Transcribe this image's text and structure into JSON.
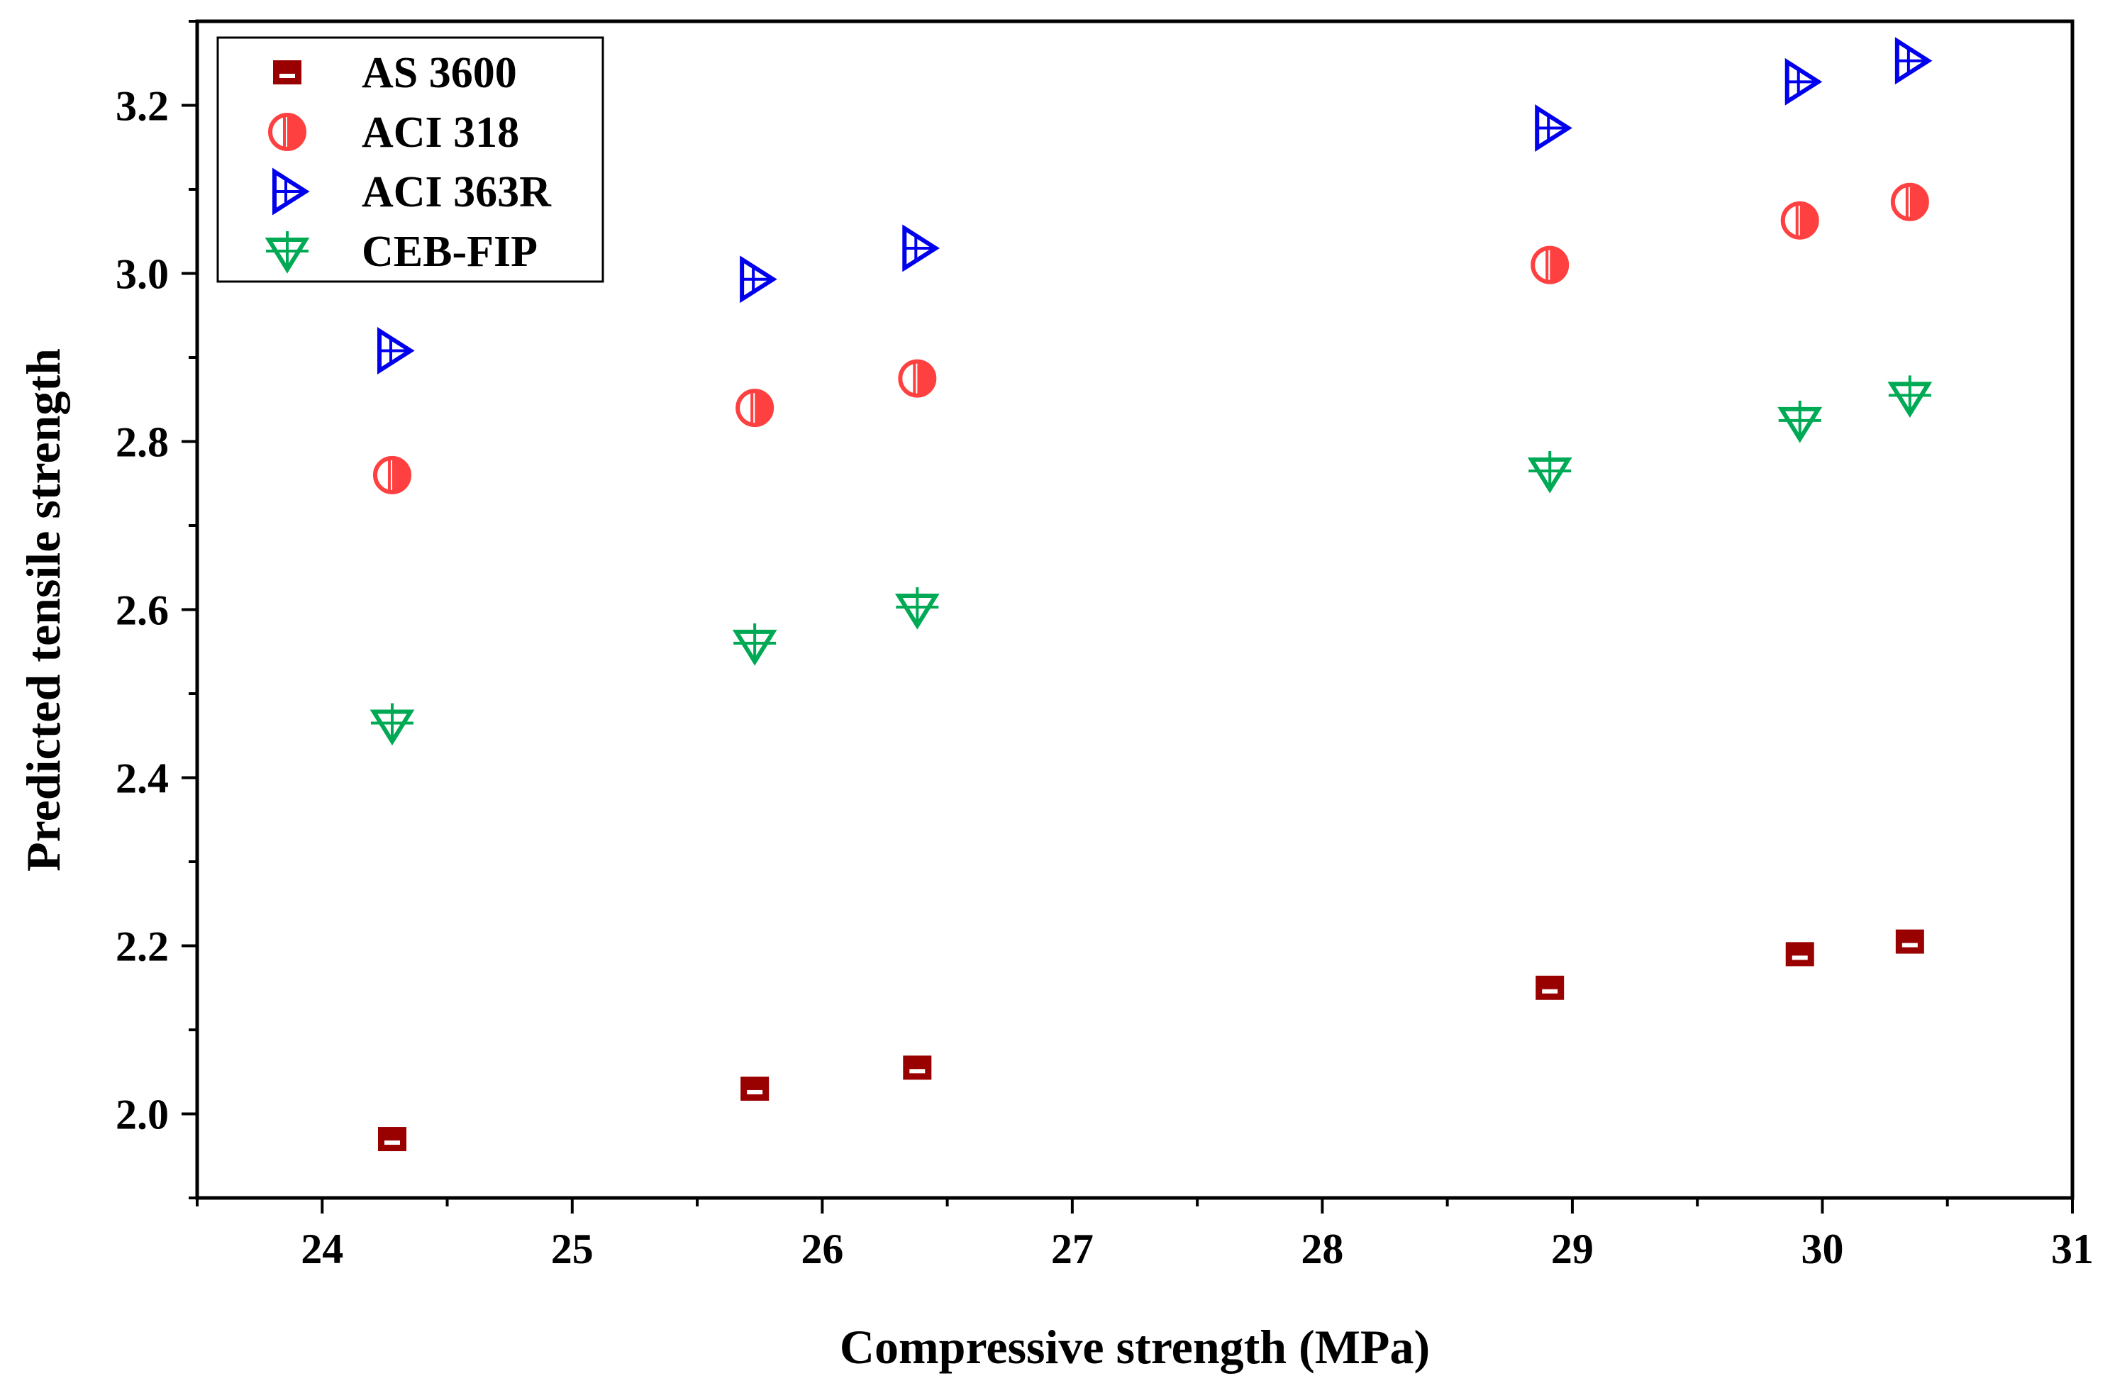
{
  "chart_data": {
    "type": "scatter",
    "title": "",
    "xlabel": "Compressive strength (MPa)",
    "ylabel": "Predicted tensile strength",
    "xlim": [
      23.5,
      31
    ],
    "ylim": [
      1.9,
      3.3
    ],
    "xticks": [
      24,
      25,
      26,
      27,
      28,
      29,
      30,
      31
    ],
    "yticks": [
      2.0,
      2.2,
      2.4,
      2.6,
      2.8,
      3.0,
      3.2
    ],
    "ytick_labels": [
      "2.0",
      "2.2",
      "2.4",
      "2.6",
      "2.8",
      "3.0",
      "3.2"
    ],
    "x": [
      24.28,
      25.73,
      26.38,
      28.91,
      29.91,
      30.35
    ],
    "series": [
      {
        "name": "AS 3600",
        "marker": "square-half",
        "color": "#990000",
        "values": [
          1.97,
          2.03,
          2.055,
          2.15,
          2.19,
          2.205
        ]
      },
      {
        "name": "ACI 318",
        "marker": "circle-half",
        "color": "#ff4040",
        "values": [
          2.76,
          2.84,
          2.875,
          3.01,
          3.063,
          3.085
        ]
      },
      {
        "name": "ACI 363R",
        "marker": "triangle-right",
        "color": "#0000ee",
        "values": [
          2.908,
          2.993,
          3.03,
          3.173,
          3.228,
          3.253
        ]
      },
      {
        "name": "CEB-FIP",
        "marker": "triangle-down",
        "color": "#00aa55",
        "values": [
          2.465,
          2.56,
          2.603,
          2.765,
          2.825,
          2.855
        ]
      }
    ],
    "legend_position": "top-left"
  }
}
